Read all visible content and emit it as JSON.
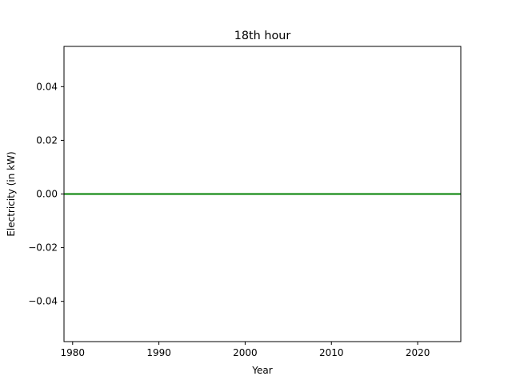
{
  "chart_data": {
    "type": "line",
    "title": "18th hour",
    "xlabel": "Year",
    "ylabel": "Electricity (in kW)",
    "xlim": [
      1979,
      2025
    ],
    "ylim": [
      -0.055,
      0.055
    ],
    "xticks": [
      1980,
      1990,
      2000,
      2010,
      2020
    ],
    "xtick_labels": [
      "1980",
      "1990",
      "2000",
      "2010",
      "2020"
    ],
    "yticks": [
      -0.04,
      -0.02,
      0.0,
      0.02,
      0.04
    ],
    "ytick_labels": [
      "−0.04",
      "−0.02",
      "0.00",
      "0.02",
      "0.04"
    ],
    "grid": false,
    "series": [
      {
        "color": "#008000",
        "x": [
          1979,
          2025
        ],
        "y": [
          0,
          0
        ]
      }
    ]
  }
}
